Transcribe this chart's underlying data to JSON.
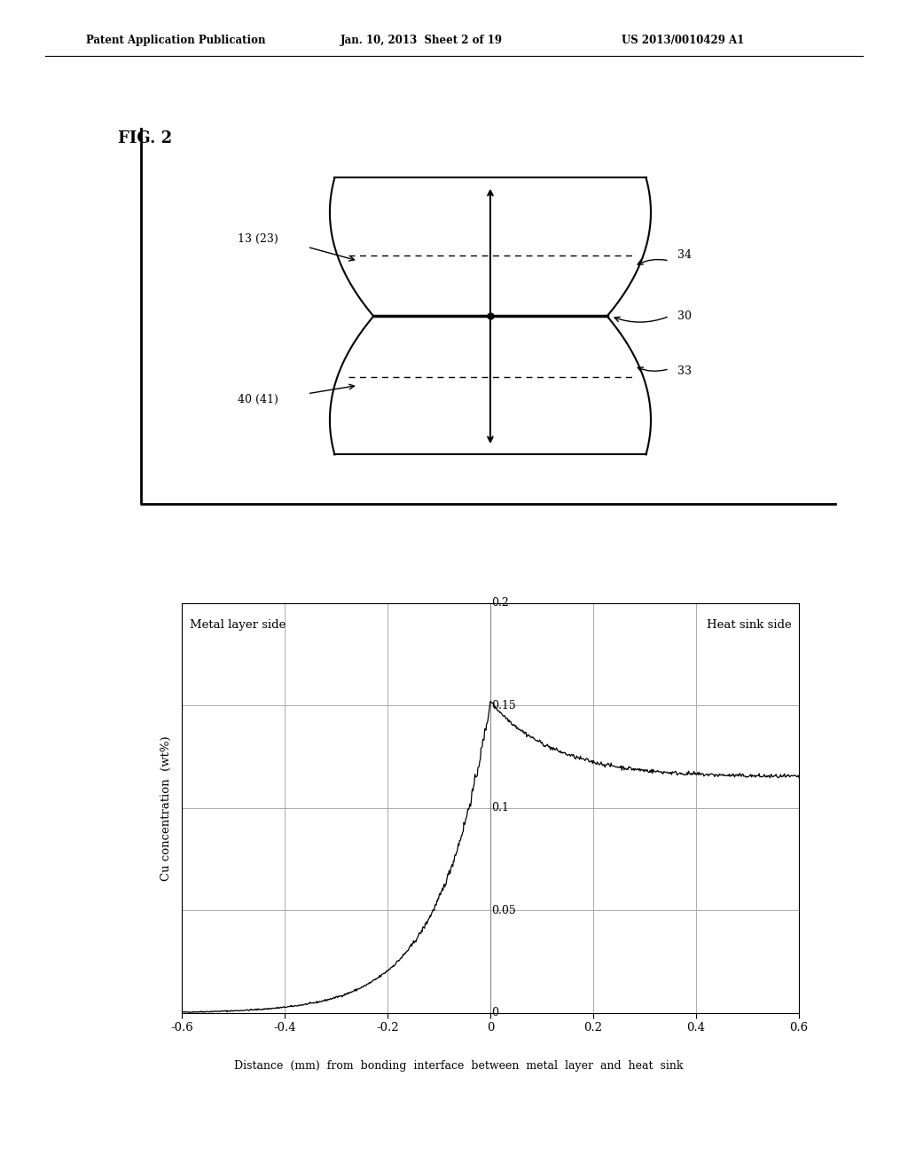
{
  "header_left": "Patent Application Publication",
  "header_mid": "Jan. 10, 2013  Sheet 2 of 19",
  "header_right": "US 2013/0010429 A1",
  "fig_label": "FIG. 2",
  "diagram": {
    "label_top_left": "13 (23)",
    "label_bottom_left": "40 (41)",
    "label_right_top": "34",
    "label_right_mid": "30",
    "label_right_bot": "33"
  },
  "graph": {
    "xlabel": "Distance  (mm)  from  bonding  interface  between  metal  layer  and  heat  sink",
    "ylabel": "Cu concentration  (wt%)",
    "label_left": "Metal layer side",
    "label_right": "Heat sink side",
    "xlim": [
      -0.6,
      0.6
    ],
    "ylim": [
      0,
      0.2
    ],
    "xticks": [
      -0.6,
      -0.4,
      -0.2,
      0,
      0.2,
      0.4,
      0.6
    ],
    "yticks": [
      0,
      0.05,
      0.1,
      0.15,
      0.2
    ],
    "ytick_labels": [
      "0",
      "0.05",
      "0.1",
      "0.15",
      "0.2"
    ],
    "xtick_labels": [
      "-0.6",
      "-0.4",
      "-0.2",
      "0",
      "0.2",
      "0.4",
      "0.6"
    ],
    "grid_color": "#aaaaaa",
    "line_color": "#000000"
  },
  "background_color": "#ffffff"
}
